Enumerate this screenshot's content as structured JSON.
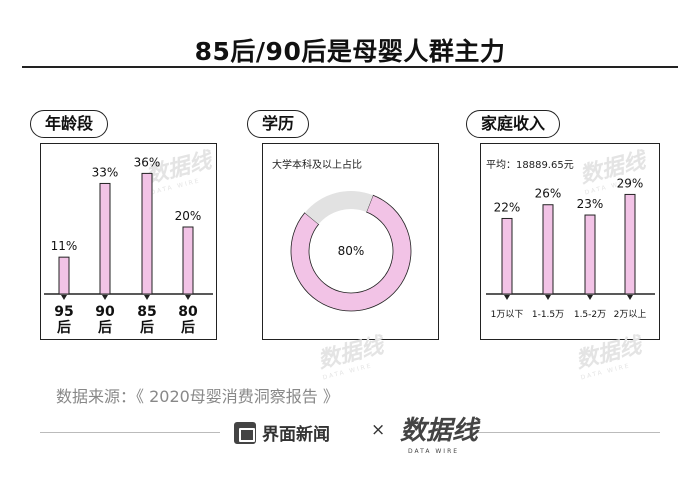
{
  "title": "85后/90后是母婴人群主力",
  "panels": {
    "age": {
      "pill": "年龄段"
    },
    "edu": {
      "pill": "学历",
      "note": "大学本科及以上占比",
      "center_label": "80%"
    },
    "income": {
      "pill": "家庭收入",
      "note": "平均：18889.65元"
    }
  },
  "chart_data": [
    {
      "type": "bar",
      "title": "年龄段",
      "categories": [
        "95后",
        "90后",
        "85后",
        "80后"
      ],
      "category_lines": [
        [
          "95",
          "后"
        ],
        [
          "90",
          "后"
        ],
        [
          "85",
          "后"
        ],
        [
          "80",
          "后"
        ]
      ],
      "values": [
        11,
        33,
        36,
        20
      ],
      "value_labels": [
        "11%",
        "33%",
        "36%",
        "20%"
      ],
      "ylim": [
        0,
        40
      ],
      "grid": false
    },
    {
      "type": "pie",
      "title": "学历",
      "subtitle": "大学本科及以上占比",
      "values": [
        80,
        20
      ],
      "center_label": "80%",
      "colors": [
        "#f2c3e6",
        "#e2e2e2"
      ]
    },
    {
      "type": "bar",
      "title": "家庭收入",
      "subtitle": "平均：18889.65元",
      "categories": [
        "1万以下",
        "1-1.5万",
        "1.5-2万",
        "2万以上"
      ],
      "values": [
        22,
        26,
        23,
        29
      ],
      "value_labels": [
        "22%",
        "26%",
        "23%",
        "29%"
      ],
      "ylim": [
        0,
        30
      ],
      "grid": false
    }
  ],
  "watermark": {
    "text": "数据线",
    "sub": "DATA WIRE"
  },
  "source": "数据来源：《 2020母婴消费洞察报告 》",
  "footer": {
    "brand": "界面新闻",
    "times": "×",
    "logo": "数据线",
    "logo_sub": "DATA WIRE"
  },
  "colors": {
    "bar": "#f2c3e6",
    "donut_rest": "#e2e2e2",
    "border": "#222222",
    "source_text": "#888888"
  }
}
